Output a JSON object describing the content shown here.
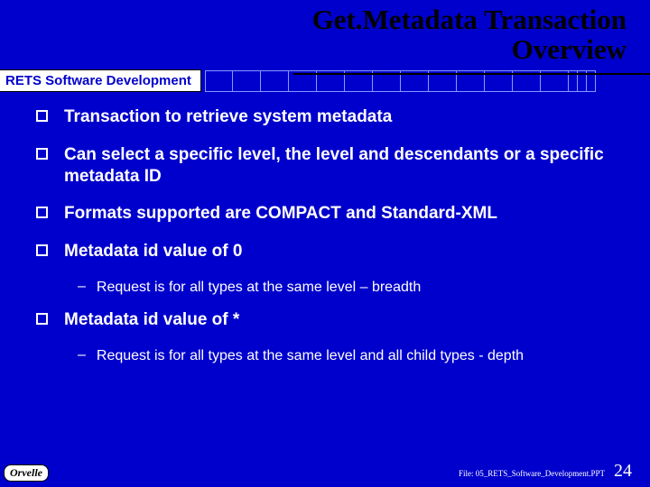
{
  "title_line1": "Get.Metadata Transaction",
  "title_line2": "Overview",
  "title_fontsize": 31,
  "subtitle": "RETS Software Development",
  "bullets": [
    {
      "text": "Transaction to retrieve system metadata",
      "subs": []
    },
    {
      "text": "Can select a specific level, the level and descendants or a specific metadata ID",
      "subs": []
    },
    {
      "text": "Formats supported are COMPACT and Standard-XML",
      "subs": []
    },
    {
      "text": "Metadata id value of 0",
      "subs": [
        {
          "text": "Request is for all types at the same level – breadth"
        }
      ]
    },
    {
      "text": "Metadata id value of *",
      "subs": [
        {
          "text": "Request is for all types at the same level and all child types - depth"
        }
      ]
    }
  ],
  "bullet_fontsize": 19,
  "sub_fontsize": 16,
  "footer_logo": "Orvelle",
  "file_label": "File: 05_RETS_Software_Development.PPT",
  "page_number": "24",
  "colors": {
    "background": "#0000cc",
    "title": "#000000",
    "body_text": "#ffffff",
    "subtitle_bg": "#ffffff",
    "subtitle_text": "#0000cc",
    "grid_border": "#8899ff"
  }
}
